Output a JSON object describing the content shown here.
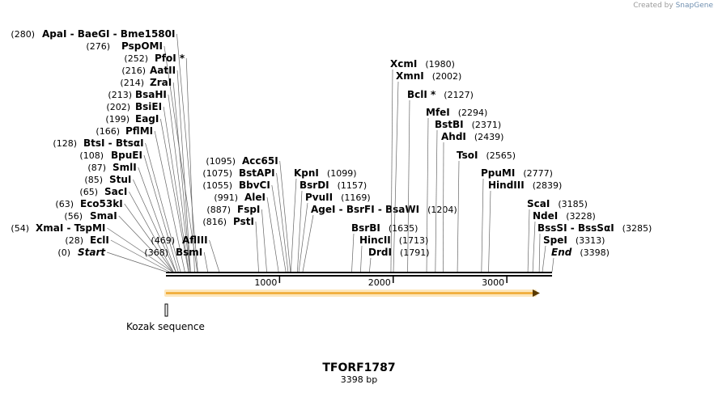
{
  "credit": {
    "prefix": "Created by",
    "brand": "SnapGene"
  },
  "map": {
    "title": "TFORF1787",
    "length_label": "3398 bp",
    "length": 3398,
    "scale_ticks": [
      "1000",
      "2000",
      "3000"
    ],
    "feature": {
      "label": "Kozak sequence"
    },
    "orf_color": "#f0a830",
    "backbone_color": "#000000"
  },
  "sites": [
    {
      "name": "ApaI - BaeGI - Bme1580I",
      "pos": "(280)"
    },
    {
      "name": "PspOMI",
      "pos": "(276)"
    },
    {
      "name": "PfoI *",
      "pos": "(252)"
    },
    {
      "name": "AatII",
      "pos": "(216)"
    },
    {
      "name": "ZraI",
      "pos": "(214)"
    },
    {
      "name": "BsaHI",
      "pos": "(213)"
    },
    {
      "name": "BsiEI",
      "pos": "(202)"
    },
    {
      "name": "EagI",
      "pos": "(199)"
    },
    {
      "name": "PflMI",
      "pos": "(166)"
    },
    {
      "name": "BtsI - BtsαI",
      "pos": "(128)"
    },
    {
      "name": "BpuEI",
      "pos": "(108)"
    },
    {
      "name": "SmlI",
      "pos": "(87)"
    },
    {
      "name": "StuI",
      "pos": "(85)"
    },
    {
      "name": "SacI",
      "pos": "(65)"
    },
    {
      "name": "Eco53kI",
      "pos": "(63)"
    },
    {
      "name": "SmaI",
      "pos": "(56)"
    },
    {
      "name": "XmaI - TspMI",
      "pos": "(54)"
    },
    {
      "name": "EclI",
      "pos": "(28)"
    },
    {
      "name": "Start",
      "pos": "(0)"
    },
    {
      "name": "AflIII",
      "pos": "(469)"
    },
    {
      "name": "BsmI",
      "pos": "(368)"
    },
    {
      "name": "Acc65I",
      "pos": "(1095)"
    },
    {
      "name": "BstAPI",
      "pos": "(1075)"
    },
    {
      "name": "BbvCI",
      "pos": "(1055)"
    },
    {
      "name": "AleI",
      "pos": "(991)"
    },
    {
      "name": "FspI",
      "pos": "(887)"
    },
    {
      "name": "PstI",
      "pos": "(816)"
    },
    {
      "name": "KpnI",
      "pos": "(1099)"
    },
    {
      "name": "BsrDI",
      "pos": "(1157)"
    },
    {
      "name": "PvuII",
      "pos": "(1169)"
    },
    {
      "name": "AgeI - BsrFI - BsaWI",
      "pos": "(1204)"
    },
    {
      "name": "XcmI",
      "pos": "(1980)"
    },
    {
      "name": "XmnI",
      "pos": "(2002)"
    },
    {
      "name": "BclI *",
      "pos": "(2127)"
    },
    {
      "name": "MfeI",
      "pos": "(2294)"
    },
    {
      "name": "BstBI",
      "pos": "(2371)"
    },
    {
      "name": "AhdI",
      "pos": "(2439)"
    },
    {
      "name": "TsoI",
      "pos": "(2565)"
    },
    {
      "name": "PpuMI",
      "pos": "(2777)"
    },
    {
      "name": "HindIII",
      "pos": "(2839)"
    },
    {
      "name": "BsrBI",
      "pos": "(1635)"
    },
    {
      "name": "HincII",
      "pos": "(1713)"
    },
    {
      "name": "DrdI",
      "pos": "(1791)"
    },
    {
      "name": "ScaI",
      "pos": "(3185)"
    },
    {
      "name": "NdeI",
      "pos": "(3228)"
    },
    {
      "name": "BssSI - BssSαI",
      "pos": "(3285)"
    },
    {
      "name": "SpeI",
      "pos": "(3313)"
    },
    {
      "name": "End",
      "pos": "(3398)"
    }
  ]
}
